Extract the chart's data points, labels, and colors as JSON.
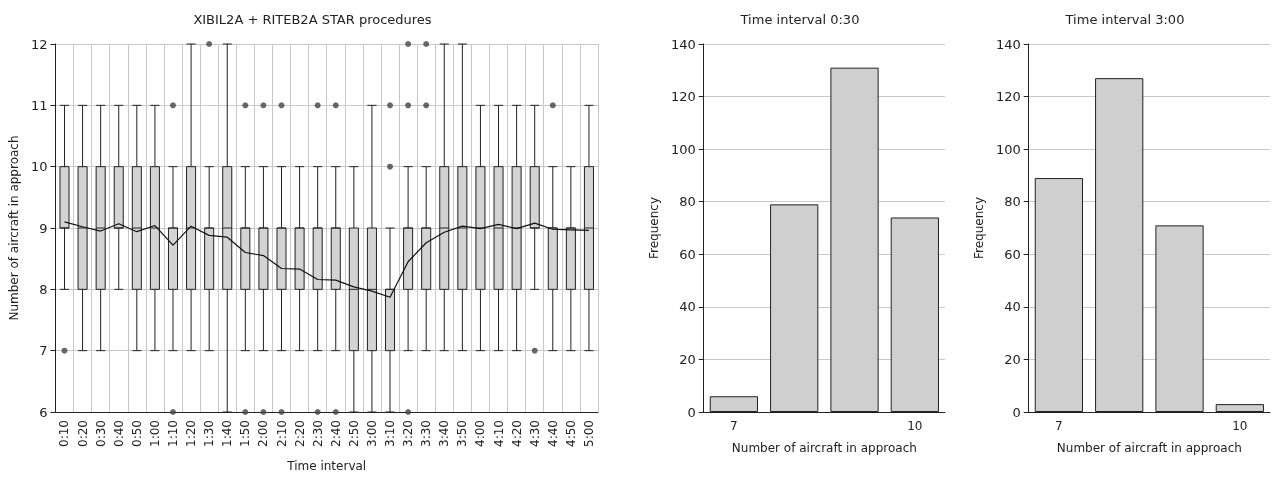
{
  "chart_data": [
    {
      "type": "box",
      "title": "XIBIL2A + RITEB2A STAR procedures",
      "xlabel": "Time interval",
      "ylabel": "Number of aircraft in approach",
      "categories": [
        "0:10",
        "0:20",
        "0:30",
        "0:40",
        "0:50",
        "1:00",
        "1:10",
        "1:20",
        "1:30",
        "1:40",
        "1:50",
        "2:00",
        "2:10",
        "2:20",
        "2:30",
        "2:40",
        "2:50",
        "3:00",
        "3:10",
        "3:20",
        "3:30",
        "3:40",
        "3:50",
        "4:00",
        "4:10",
        "4:20",
        "4:30",
        "4:40",
        "4:50",
        "5:00"
      ],
      "ylim": [
        6,
        12
      ],
      "yticks": [
        6,
        7,
        8,
        9,
        10,
        11,
        12
      ],
      "grid": true,
      "series": [
        {
          "type": "box",
          "color": "#d3d3d3",
          "boxes": [
            {
              "low": 8,
              "q1": 9,
              "median": 9,
              "q3": 10,
              "high": 11
            },
            {
              "low": 7,
              "q1": 8,
              "median": 9,
              "q3": 10,
              "high": 11
            },
            {
              "low": 7,
              "q1": 8,
              "median": 9,
              "q3": 10,
              "high": 11
            },
            {
              "low": 8,
              "q1": 9,
              "median": 9,
              "q3": 10,
              "high": 11
            },
            {
              "low": 7,
              "q1": 8,
              "median": 9,
              "q3": 10,
              "high": 11
            },
            {
              "low": 7,
              "q1": 8,
              "median": 9,
              "q3": 10,
              "high": 11
            },
            {
              "low": 7,
              "q1": 8,
              "median": 9,
              "q3": 9,
              "high": 10
            },
            {
              "low": 7,
              "q1": 8,
              "median": 9,
              "q3": 10,
              "high": 12
            },
            {
              "low": 7,
              "q1": 8,
              "median": 9,
              "q3": 9,
              "high": 10
            },
            {
              "low": 6,
              "q1": 8,
              "median": 9,
              "q3": 10,
              "high": 12
            },
            {
              "low": 7,
              "q1": 8,
              "median": 9,
              "q3": 9,
              "high": 10
            },
            {
              "low": 7,
              "q1": 8,
              "median": 9,
              "q3": 9,
              "high": 10
            },
            {
              "low": 7,
              "q1": 8,
              "median": 9,
              "q3": 9,
              "high": 10
            },
            {
              "low": 7,
              "q1": 8,
              "median": 9,
              "q3": 9,
              "high": 10
            },
            {
              "low": 7,
              "q1": 8,
              "median": 9,
              "q3": 9,
              "high": 10
            },
            {
              "low": 7,
              "q1": 8,
              "median": 9,
              "q3": 9,
              "high": 10
            },
            {
              "low": 6,
              "q1": 7,
              "median": 8,
              "q3": 9,
              "high": 10
            },
            {
              "low": 6,
              "q1": 7,
              "median": 8,
              "q3": 9,
              "high": 11
            },
            {
              "low": 6,
              "q1": 7,
              "median": 8,
              "q3": 8,
              "high": 9
            },
            {
              "low": 7,
              "q1": 8,
              "median": 9,
              "q3": 9,
              "high": 10
            },
            {
              "low": 7,
              "q1": 8,
              "median": 9,
              "q3": 9,
              "high": 10
            },
            {
              "low": 7,
              "q1": 8,
              "median": 9,
              "q3": 10,
              "high": 12
            },
            {
              "low": 7,
              "q1": 8,
              "median": 9,
              "q3": 10,
              "high": 12
            },
            {
              "low": 7,
              "q1": 8,
              "median": 9,
              "q3": 10,
              "high": 11
            },
            {
              "low": 7,
              "q1": 8,
              "median": 9,
              "q3": 10,
              "high": 11
            },
            {
              "low": 7,
              "q1": 8,
              "median": 9,
              "q3": 10,
              "high": 11
            },
            {
              "low": 8,
              "q1": 9,
              "median": 9,
              "q3": 10,
              "high": 11
            },
            {
              "low": 7,
              "q1": 8,
              "median": 9,
              "q3": 9,
              "high": 10
            },
            {
              "low": 7,
              "q1": 8,
              "median": 9,
              "q3": 9,
              "high": 10
            },
            {
              "low": 7,
              "q1": 8,
              "median": 9,
              "q3": 10,
              "high": 11
            }
          ]
        },
        {
          "type": "scatter",
          "color": "#444444",
          "marker": "circle",
          "x": [
            "0:10",
            "1:10",
            "1:10",
            "1:30",
            "1:50",
            "1:50",
            "2:00",
            "2:00",
            "2:10",
            "2:10",
            "2:30",
            "2:30",
            "2:40",
            "2:40",
            "3:10",
            "3:10",
            "3:20",
            "3:20",
            "3:20",
            "3:30",
            "3:30",
            "4:30",
            "4:40"
          ],
          "values": [
            7,
            11,
            6,
            12,
            11,
            6,
            11,
            6,
            11,
            6,
            11,
            6,
            11,
            6,
            11,
            10,
            12,
            11,
            6,
            12,
            11,
            7,
            11
          ]
        },
        {
          "type": "line",
          "color": "#111111",
          "marker": "none",
          "values": [
            9.1,
            9.02,
            8.95,
            9.07,
            8.94,
            9.04,
            8.72,
            9.03,
            8.88,
            8.85,
            8.6,
            8.55,
            8.34,
            8.33,
            8.16,
            8.15,
            8.04,
            7.97,
            7.87,
            8.45,
            8.76,
            8.93,
            9.03,
            8.99,
            9.06,
            8.99,
            9.08,
            8.98,
            8.97,
            8.96
          ]
        }
      ]
    },
    {
      "type": "bar",
      "title": "Time interval 0:30",
      "xlabel": "Number of aircraft in approach",
      "ylabel": "Frequency",
      "categories": [
        "7",
        null,
        null,
        "10"
      ],
      "values": [
        6,
        79,
        131,
        74
      ],
      "color": "#d0cfd0",
      "ylim": [
        0,
        140
      ],
      "yticks": [
        0,
        20,
        40,
        60,
        80,
        100,
        120,
        140
      ],
      "grid": "y"
    },
    {
      "type": "bar",
      "title": "Time interval 3:00",
      "xlabel": "Number of aircraft in approach",
      "ylabel": "Frequency",
      "categories": [
        "7",
        null,
        null,
        "10"
      ],
      "values": [
        89,
        127,
        71,
        3
      ],
      "color": "#d0cfd0",
      "ylim": [
        0,
        140
      ],
      "yticks": [
        0,
        20,
        40,
        60,
        80,
        100,
        120,
        140
      ],
      "grid": "y"
    }
  ]
}
